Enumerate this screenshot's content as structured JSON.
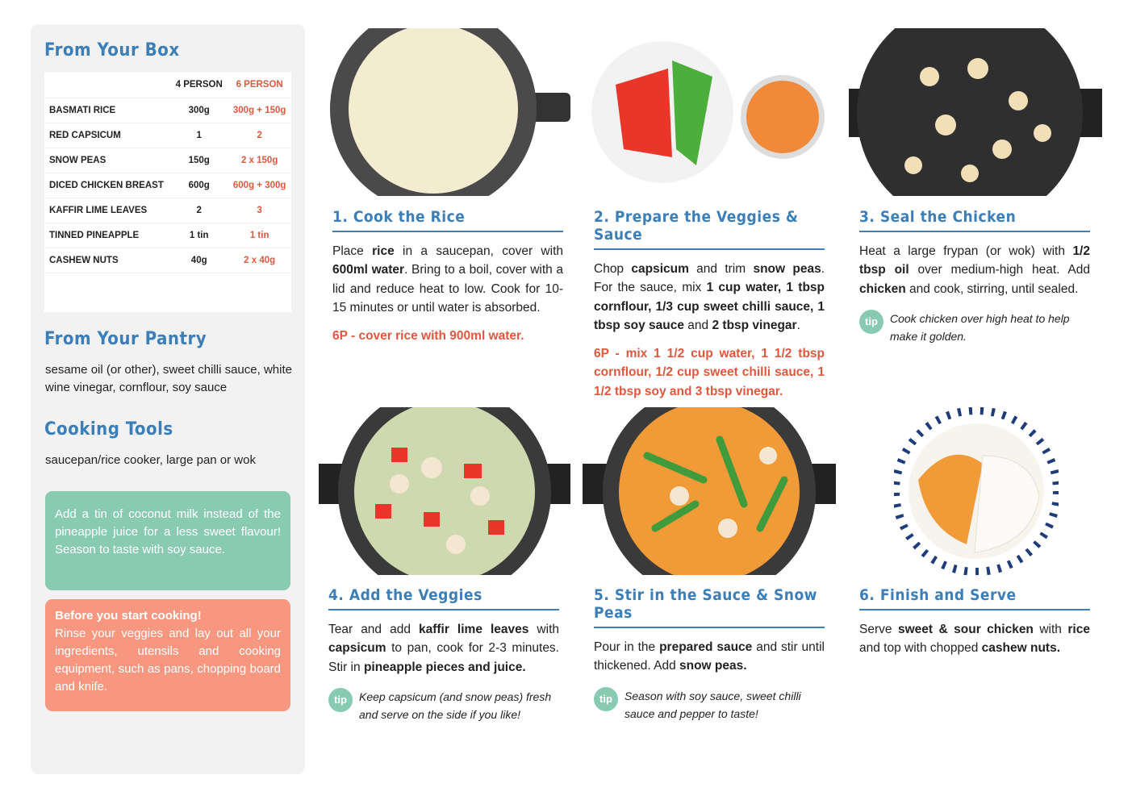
{
  "sidebar": {
    "box_title": "From Your Box",
    "table": {
      "header": [
        "4 PERSON",
        "6 PERSON"
      ],
      "rows": [
        [
          "BASMATI RICE",
          "300g",
          "300g + 150g"
        ],
        [
          "RED CAPSICUM",
          "1",
          "2"
        ],
        [
          "SNOW PEAS",
          "150g",
          "2 x 150g"
        ],
        [
          "DICED CHICKEN BREAST",
          "600g",
          "600g + 300g"
        ],
        [
          "KAFFIR LIME LEAVES",
          "2",
          "3"
        ],
        [
          "TINNED PINEAPPLE",
          "1 tin",
          "1 tin"
        ],
        [
          "CASHEW NUTS",
          "40g",
          "2 x 40g"
        ]
      ]
    },
    "pantry_title": "From Your Pantry",
    "pantry_text": "sesame oil (or other), sweet chilli sauce, white wine vinegar, cornflour, soy sauce",
    "tools_title": "Cooking Tools",
    "tools_text": "saucepan/rice cooker, large pan or wok",
    "tip_box": "Add a tin of coconut milk instead of the pineapple juice for a less sweet flavour! Season to taste with soy sauce.",
    "start_box": {
      "title": "Before you start cooking!",
      "text": "Rinse your veggies and lay out all your ingredients, utensils and cooking equipment, such as pans, chopping board and knife."
    }
  },
  "tip_label": "tip",
  "steps": [
    {
      "title": "1. Cook the Rice",
      "body": [
        {
          "text": "Place "
        },
        {
          "text": "rice",
          "bold": true
        },
        {
          "text": " in a saucepan, cover with "
        },
        {
          "text": "600ml water",
          "bold": true
        },
        {
          "text": ". Bring to a boil, cover with a lid and reduce heat to low. Cook for 10-15 minutes or until water is absorbed."
        }
      ],
      "note": "6P - cover rice with 900ml water."
    },
    {
      "title": "2. Prepare the Veggies & Sauce",
      "body": [
        {
          "text": "Chop "
        },
        {
          "text": "capsicum",
          "bold": true
        },
        {
          "text": " and trim "
        },
        {
          "text": "snow peas",
          "bold": true
        },
        {
          "text": ". For the sauce, mix "
        },
        {
          "text": "1 cup water, 1 tbsp cornflour, 1/3 cup sweet chilli sauce, 1 tbsp soy sauce",
          "bold": true
        },
        {
          "text": " and "
        },
        {
          "text": "2 tbsp vinegar",
          "bold": true
        },
        {
          "text": "."
        }
      ],
      "note": "6P - mix 1 1/2 cup water, 1 1/2 tbsp cornflour, 1/2 cup sweet chilli sauce, 1 1/2 tbsp soy and 3 tbsp vinegar."
    },
    {
      "title": "3. Seal the Chicken",
      "body": [
        {
          "text": "Heat a large frypan (or wok) with "
        },
        {
          "text": "1/2 tbsp oil",
          "bold": true
        },
        {
          "text": " over medium-high heat. Add "
        },
        {
          "text": "chicken",
          "bold": true
        },
        {
          "text": " and cook, stirring, until sealed."
        }
      ],
      "tip": "Cook chicken over high heat to help make it golden."
    },
    {
      "title": "4. Add the Veggies",
      "body": [
        {
          "text": "Tear and add "
        },
        {
          "text": "kaffir lime leaves",
          "bold": true
        },
        {
          "text": " with "
        },
        {
          "text": "capsicum",
          "bold": true
        },
        {
          "text": " to pan, cook for 2-3 minutes. Stir in "
        },
        {
          "text": "pineapple pieces and juice.",
          "bold": true
        }
      ],
      "tip": "Keep capsicum (and snow peas) fresh and serve on the side if you like!"
    },
    {
      "title": "5. Stir in the Sauce & Snow Peas",
      "body": [
        {
          "text": "Pour in the "
        },
        {
          "text": "prepared sauce",
          "bold": true
        },
        {
          "text": " and stir until thickened. Add "
        },
        {
          "text": "snow peas.",
          "bold": true
        }
      ],
      "tip": "Season with soy sauce, sweet chilli sauce and pepper to taste!"
    },
    {
      "title": "6. Finish and Serve",
      "body": [
        {
          "text": "Serve "
        },
        {
          "text": "sweet & sour chicken",
          "bold": true
        },
        {
          "text": " with "
        },
        {
          "text": "rice",
          "bold": true
        },
        {
          "text": " and top with chopped "
        },
        {
          "text": "cashew nuts.",
          "bold": true
        }
      ]
    }
  ]
}
